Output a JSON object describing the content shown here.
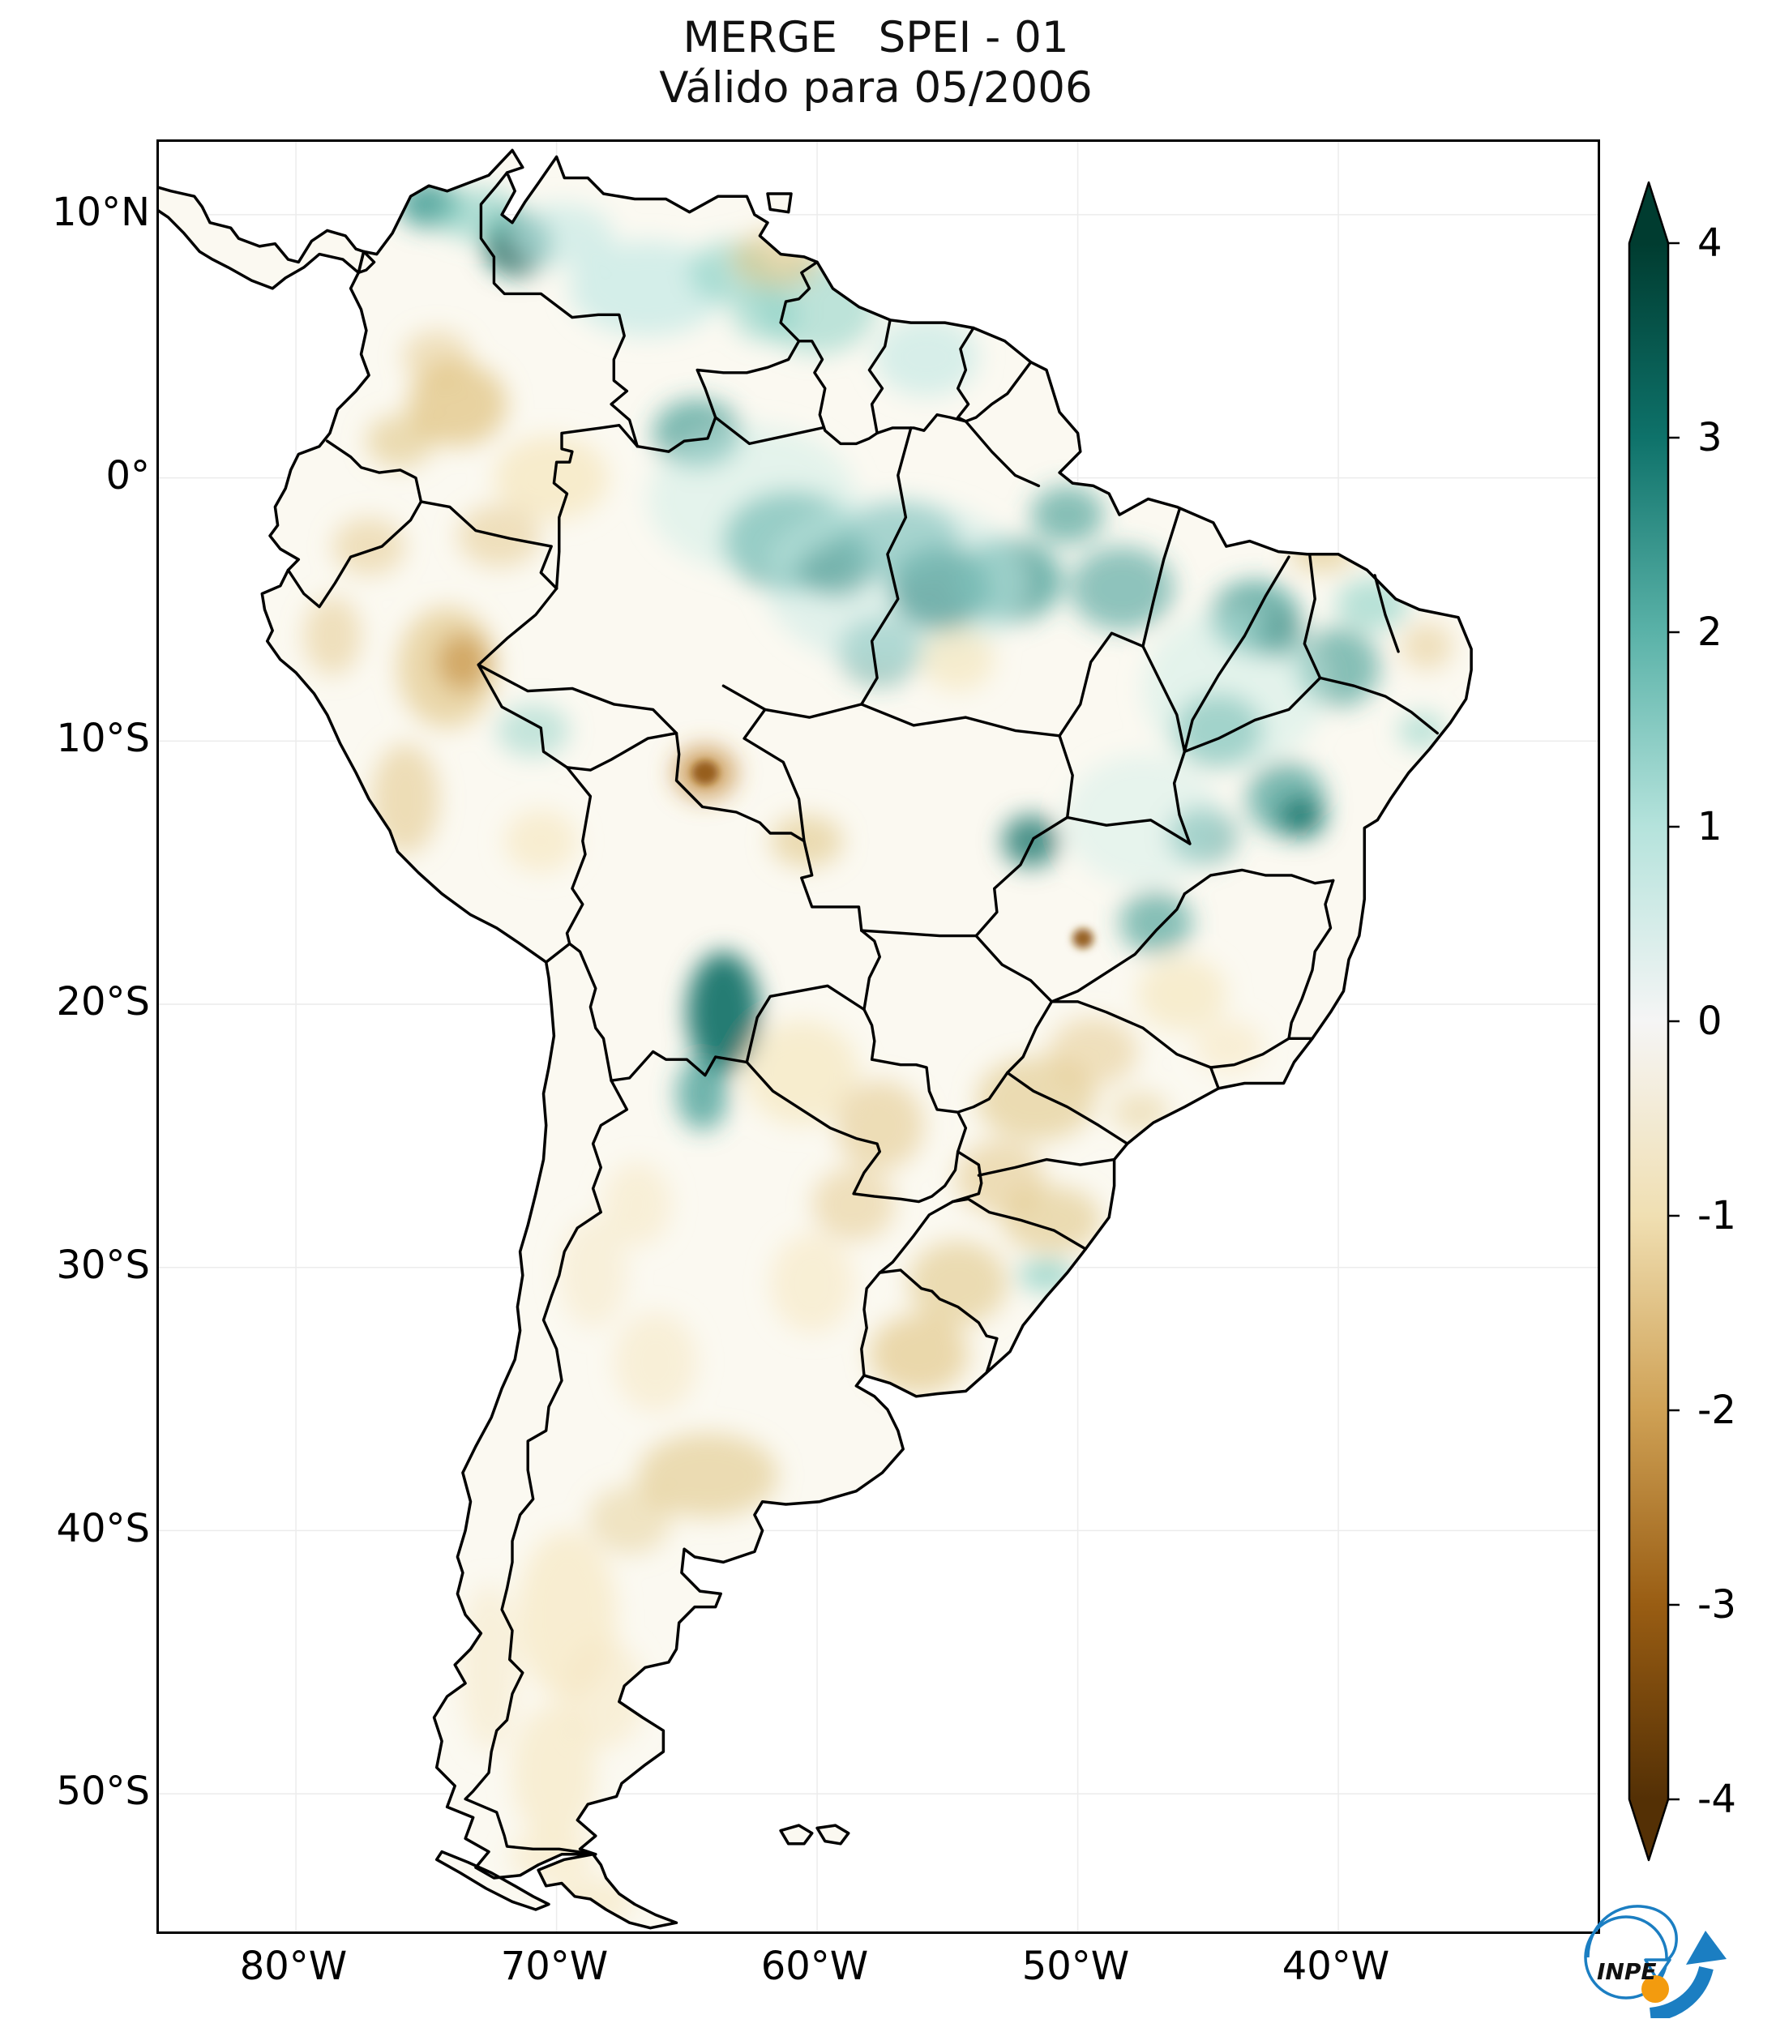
{
  "title": {
    "line1": "MERGE   SPEI - 01",
    "line2": "Válido para 05/2006"
  },
  "axes": {
    "lat_ticks": [
      {
        "label": "10°N"
      },
      {
        "label": "0°"
      },
      {
        "label": "10°S"
      },
      {
        "label": "20°S"
      },
      {
        "label": "30°S"
      },
      {
        "label": "40°S"
      },
      {
        "label": "50°S"
      }
    ],
    "lon_ticks": [
      {
        "label": "80°W"
      },
      {
        "label": "70°W"
      },
      {
        "label": "60°W"
      },
      {
        "label": "50°W"
      },
      {
        "label": "40°W"
      }
    ]
  },
  "colorbar": {
    "vmin": -4,
    "vmax": 4,
    "tick_labels": [
      "4",
      "3",
      "2",
      "1",
      "0",
      "-1",
      "-2",
      "-3",
      "-4"
    ],
    "gradient_top_to_bottom": [
      "#003c30",
      "#0e726a",
      "#5ab2a8",
      "#b5e3dc",
      "#f5f5f5",
      "#f0dfb2",
      "#cfa155",
      "#995d13",
      "#543005"
    ],
    "extend_over_color": "#003c30",
    "extend_under_color": "#543005"
  },
  "logo": {
    "text": "INPE",
    "blue": "#1b7ec2",
    "orange": "#f39b0e",
    "dark": "#111111"
  },
  "map_data": {
    "type": "heatmap",
    "index": "SPEI-01",
    "valid_for": "05/2006",
    "value_range": [
      -4,
      4
    ],
    "land_base_color": "#fbf9f1",
    "anomaly_fields": [
      "lon",
      "lat",
      "rx_deg",
      "ry_deg",
      "color",
      "opacity"
    ],
    "anomalies": [
      [
        -74.9,
        10.4,
        1.2,
        0.9,
        "#35978f",
        0.8
      ],
      [
        -71.5,
        8.9,
        1.3,
        1.2,
        "#01665e",
        0.85
      ],
      [
        -73.0,
        10.0,
        1.6,
        1.0,
        "#80cdc1",
        0.6
      ],
      [
        -69.8,
        9.2,
        2.0,
        1.2,
        "#c7eae5",
        0.7
      ],
      [
        -66.5,
        7.2,
        3.0,
        1.8,
        "#c7eae5",
        0.75
      ],
      [
        -63.3,
        7.8,
        1.6,
        1.2,
        "#80cdc1",
        0.55
      ],
      [
        -60.0,
        6.5,
        2.3,
        1.8,
        "#80cdc1",
        0.5
      ],
      [
        -55.8,
        4.6,
        2.0,
        1.5,
        "#c7eae5",
        0.7
      ],
      [
        -64.6,
        1.7,
        1.7,
        1.3,
        "#35978f",
        0.65
      ],
      [
        -61.0,
        -2.4,
        2.6,
        1.9,
        "#35978f",
        0.7
      ],
      [
        -59.3,
        -3.3,
        1.5,
        1.2,
        "#01665e",
        0.75
      ],
      [
        -55.3,
        -4.2,
        1.9,
        1.6,
        "#01665e",
        0.85
      ],
      [
        -56.8,
        -2.4,
        2.3,
        1.5,
        "#35978f",
        0.6
      ],
      [
        -52.7,
        -3.9,
        2.1,
        1.6,
        "#35978f",
        0.7
      ],
      [
        -50.4,
        -1.4,
        1.4,
        1.1,
        "#35978f",
        0.6
      ],
      [
        -48.3,
        -4.2,
        2.0,
        1.6,
        "#35978f",
        0.55
      ],
      [
        -43.2,
        -5.3,
        1.7,
        1.4,
        "#35978f",
        0.7
      ],
      [
        -42.3,
        -6.0,
        0.9,
        0.8,
        "#01665e",
        0.75
      ],
      [
        -40.0,
        -7.2,
        1.6,
        1.5,
        "#35978f",
        0.6
      ],
      [
        -38.7,
        -4.8,
        1.4,
        1.0,
        "#80cdc1",
        0.55
      ],
      [
        -44.6,
        -9.6,
        1.7,
        1.4,
        "#35978f",
        0.6
      ],
      [
        -42.0,
        -12.2,
        1.5,
        1.4,
        "#35978f",
        0.65
      ],
      [
        -41.4,
        -12.9,
        0.9,
        0.8,
        "#01665e",
        0.7
      ],
      [
        -45.2,
        -13.6,
        1.3,
        1.1,
        "#35978f",
        0.55
      ],
      [
        -51.8,
        -13.8,
        1.1,
        1.0,
        "#01665e",
        0.7
      ],
      [
        -47.0,
        -16.9,
        1.4,
        1.2,
        "#35978f",
        0.6
      ],
      [
        -63.6,
        -20.3,
        1.4,
        2.3,
        "#01665e",
        0.85
      ],
      [
        -64.4,
        -23.4,
        1.0,
        1.4,
        "#35978f",
        0.7
      ],
      [
        -51.2,
        -30.3,
        1.1,
        0.6,
        "#80cdc1",
        0.7
      ],
      [
        -70.9,
        -9.6,
        1.4,
        1.0,
        "#80cdc1",
        0.45
      ],
      [
        -57.6,
        -6.6,
        1.6,
        1.3,
        "#35978f",
        0.5
      ],
      [
        -62.0,
        6.2,
        1.3,
        1.0,
        "#80cdc1",
        0.5
      ],
      [
        -57.0,
        -4.0,
        5.0,
        3.2,
        "#c7eae5",
        0.5
      ],
      [
        -62.5,
        -0.8,
        4.0,
        2.8,
        "#c7eae5",
        0.45
      ],
      [
        -44.0,
        -8.0,
        3.5,
        3.0,
        "#c7eae5",
        0.45
      ],
      [
        -47.5,
        -13.0,
        3.0,
        2.5,
        "#c7eae5",
        0.4
      ],
      [
        -36.8,
        -9.6,
        0.9,
        0.7,
        "#80cdc1",
        0.5
      ],
      [
        -73.8,
        2.8,
        1.9,
        1.6,
        "#dfc27d",
        0.7
      ],
      [
        -76.0,
        1.4,
        1.3,
        1.0,
        "#dfc27d",
        0.55
      ],
      [
        -74.6,
        4.6,
        1.3,
        1.0,
        "#dfc27d",
        0.45
      ],
      [
        -70.2,
        0.0,
        2.2,
        1.6,
        "#f6e8c3",
        0.8
      ],
      [
        -72.2,
        -2.2,
        1.6,
        1.2,
        "#dfc27d",
        0.45
      ],
      [
        -77.2,
        -2.6,
        1.4,
        1.1,
        "#dfc27d",
        0.45
      ],
      [
        -78.6,
        -6.0,
        1.1,
        1.5,
        "#dfc27d",
        0.45
      ],
      [
        -74.2,
        -7.2,
        1.9,
        2.3,
        "#dfc27d",
        0.6
      ],
      [
        -73.6,
        -7.0,
        1.0,
        1.1,
        "#bf812d",
        0.55
      ],
      [
        -75.8,
        -12.2,
        1.3,
        2.1,
        "#dfc27d",
        0.5
      ],
      [
        -70.6,
        -13.8,
        1.4,
        1.2,
        "#f6e8c3",
        0.7
      ],
      [
        -64.3,
        -11.2,
        1.2,
        1.0,
        "#bf812d",
        0.7
      ],
      [
        -64.3,
        -11.2,
        0.5,
        0.45,
        "#8c510a",
        0.85
      ],
      [
        -60.4,
        -13.8,
        1.4,
        1.0,
        "#dfc27d",
        0.55
      ],
      [
        -54.6,
        -6.9,
        1.4,
        1.2,
        "#f6e8c3",
        0.75
      ],
      [
        -49.8,
        -17.5,
        0.4,
        0.38,
        "#8c510a",
        0.9
      ],
      [
        -46.0,
        -19.6,
        1.7,
        1.4,
        "#f6e8c3",
        0.75
      ],
      [
        -40.6,
        -2.8,
        1.3,
        0.8,
        "#dfc27d",
        0.55
      ],
      [
        -36.6,
        -6.4,
        1.0,
        0.9,
        "#dfc27d",
        0.45
      ],
      [
        -61.6,
        8.3,
        1.7,
        1.1,
        "#dfc27d",
        0.55
      ],
      [
        -60.6,
        -22.6,
        2.2,
        2.0,
        "#f6e8c3",
        0.75
      ],
      [
        -57.6,
        -24.6,
        1.7,
        1.7,
        "#dfc27d",
        0.5
      ],
      [
        -51.6,
        -23.6,
        2.3,
        1.6,
        "#dfc27d",
        0.55
      ],
      [
        -49.4,
        -21.8,
        1.7,
        1.3,
        "#dfc27d",
        0.45
      ],
      [
        -53.0,
        -26.6,
        1.7,
        1.4,
        "#dfc27d",
        0.5
      ],
      [
        -51.0,
        -28.2,
        1.9,
        1.3,
        "#dfc27d",
        0.55
      ],
      [
        -54.6,
        -30.6,
        1.9,
        1.6,
        "#dfc27d",
        0.55
      ],
      [
        -56.1,
        -33.3,
        1.9,
        1.5,
        "#dfc27d",
        0.6
      ],
      [
        -58.6,
        -27.6,
        1.6,
        1.4,
        "#dfc27d",
        0.45
      ],
      [
        -60.2,
        -30.6,
        1.6,
        1.9,
        "#f6e8c3",
        0.6
      ],
      [
        -64.2,
        -37.9,
        2.7,
        1.6,
        "#dfc27d",
        0.55
      ],
      [
        -66.2,
        -33.6,
        1.6,
        1.9,
        "#f6e8c3",
        0.55
      ],
      [
        -68.6,
        -30.2,
        1.3,
        2.1,
        "#f6e8c3",
        0.5
      ],
      [
        -69.6,
        -43.2,
        1.9,
        3.2,
        "#f6e8c3",
        0.7
      ],
      [
        -70.1,
        -49.2,
        1.6,
        2.6,
        "#f6e8c3",
        0.65
      ],
      [
        -68.2,
        -46.2,
        1.6,
        2.1,
        "#f6e8c3",
        0.55
      ],
      [
        -72.6,
        -45.2,
        1.1,
        3.2,
        "#f6e8c3",
        0.5
      ],
      [
        -67.2,
        -39.6,
        1.6,
        1.3,
        "#dfc27d",
        0.4
      ],
      [
        -66.9,
        -27.6,
        1.3,
        1.6,
        "#f6e8c3",
        0.55
      ],
      [
        -70.2,
        -52.4,
        1.6,
        1.0,
        "#f6e8c3",
        0.6
      ],
      [
        -68.6,
        -54.1,
        1.6,
        0.9,
        "#f6e8c3",
        0.65
      ],
      [
        -44.2,
        -21.6,
        1.3,
        1.0,
        "#f6e8c3",
        0.6
      ],
      [
        -47.6,
        -24.1,
        1.1,
        0.8,
        "#dfc27d",
        0.4
      ]
    ]
  }
}
